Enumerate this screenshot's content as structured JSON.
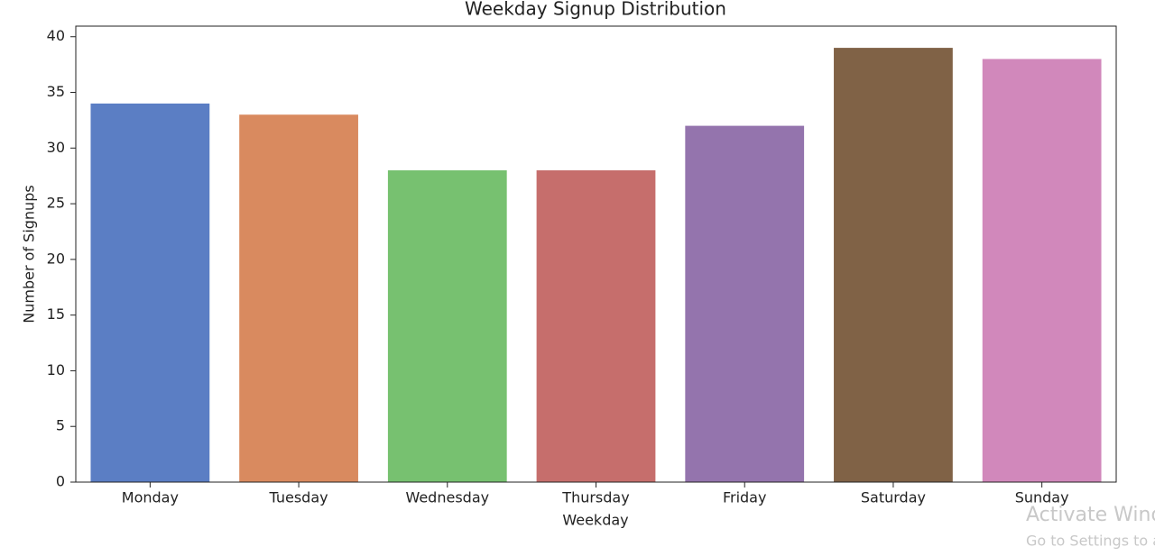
{
  "chart_data": {
    "type": "bar",
    "title": "Weekday Signup Distribution",
    "x_label": "Weekday",
    "y_label": "Number of Signups",
    "categories": [
      "Monday",
      "Tuesday",
      "Wednesday",
      "Thursday",
      "Friday",
      "Saturday",
      "Sunday"
    ],
    "values": [
      34,
      33,
      28,
      28,
      32,
      39,
      38
    ],
    "colors": [
      "#5b7ec4",
      "#d98a5f",
      "#77c170",
      "#c66e6c",
      "#9474ad",
      "#806246",
      "#d188bb"
    ],
    "ylim": [
      0,
      40.95
    ],
    "yticks": [
      0,
      5,
      10,
      15,
      20,
      25,
      30,
      35,
      40
    ],
    "grid": false
  },
  "watermark": {
    "title": "Activate Windows",
    "subtitle": "Go to Settings to activate Windows."
  }
}
